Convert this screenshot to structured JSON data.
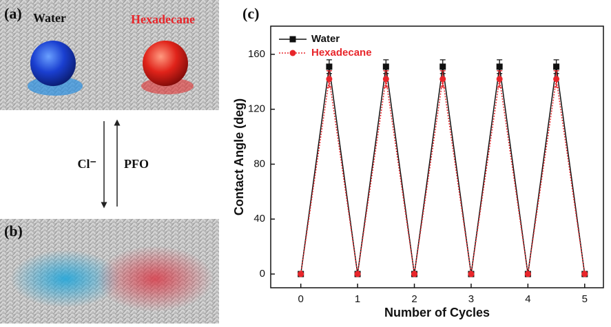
{
  "panels": {
    "a": {
      "label": "(a)",
      "left_drop": "Water",
      "right_drop": "Hexadecane"
    },
    "arrows": {
      "forward": "Cl⁻",
      "backward": "PFO"
    },
    "b": {
      "label": "(b)"
    }
  },
  "chart_data": {
    "type": "line",
    "panel_label": "(c)",
    "x_label": "Number of Cycles",
    "y_label": "Contact Angle (deg)",
    "x": [
      0,
      0.5,
      1,
      1.5,
      2,
      2.5,
      3,
      3.5,
      4,
      4.5,
      5
    ],
    "series": [
      {
        "name": "Water",
        "color": "#111111",
        "marker": "square",
        "dash": "solid",
        "values": [
          0,
          151,
          0,
          151,
          0,
          151,
          0,
          151,
          0,
          151,
          0
        ],
        "errors": [
          0,
          5,
          0,
          5,
          0,
          5,
          0,
          5,
          0,
          5,
          0
        ]
      },
      {
        "name": "Hexadecane",
        "color": "#e8262b",
        "marker": "circle",
        "dash": "dotted",
        "values": [
          0,
          142,
          0,
          142,
          0,
          142,
          0,
          142,
          0,
          142,
          0
        ],
        "errors": [
          0,
          6,
          0,
          6,
          0,
          6,
          0,
          6,
          0,
          6,
          0
        ]
      }
    ],
    "xlim": [
      -0.53,
      5.33
    ],
    "ylim": [
      -10,
      180.5
    ],
    "xticks": [
      0,
      1,
      2,
      3,
      4,
      5
    ],
    "yticks": [
      0,
      40,
      80,
      120,
      160
    ],
    "legend": "upper-left"
  }
}
